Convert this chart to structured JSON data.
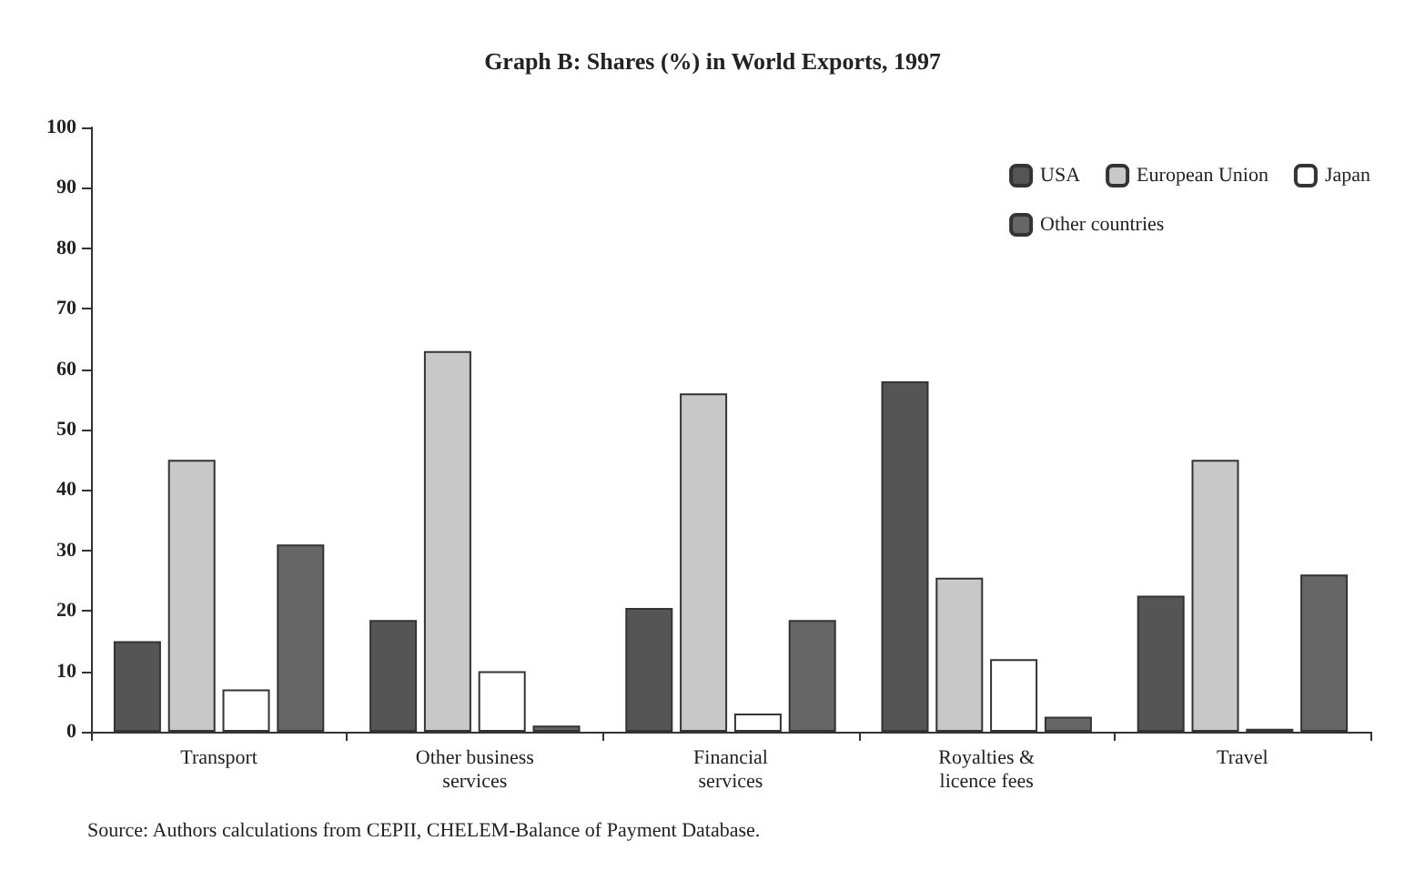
{
  "chart_data": {
    "type": "bar",
    "title": "Graph B: Shares (%) in World Exports, 1997",
    "categories": [
      "Transport",
      "Other business\nservices",
      "Financial\nservices",
      "Royalties &\nlicence fees",
      "Travel"
    ],
    "series": [
      {
        "name": "USA",
        "color": "#555555",
        "values": [
          15,
          18.5,
          20.5,
          58,
          22.5
        ]
      },
      {
        "name": "European Union",
        "color": "#c8c8c8",
        "values": [
          45,
          63,
          56,
          25.5,
          45
        ]
      },
      {
        "name": "Japan",
        "color": "#ffffff",
        "values": [
          7,
          10,
          3,
          12,
          0.5
        ]
      },
      {
        "name": "Other countries",
        "color": "#666666",
        "values": [
          31,
          1,
          18.5,
          2.5,
          26
        ]
      }
    ],
    "ylim": [
      0,
      100
    ],
    "yticks": [
      0,
      10,
      20,
      30,
      40,
      50,
      60,
      70,
      80,
      90,
      100
    ],
    "grid": false,
    "legend": "top right",
    "annotations": [
      "Source: Authors calculations from CEPII, CHELEM-Balance of Payment Database."
    ]
  }
}
